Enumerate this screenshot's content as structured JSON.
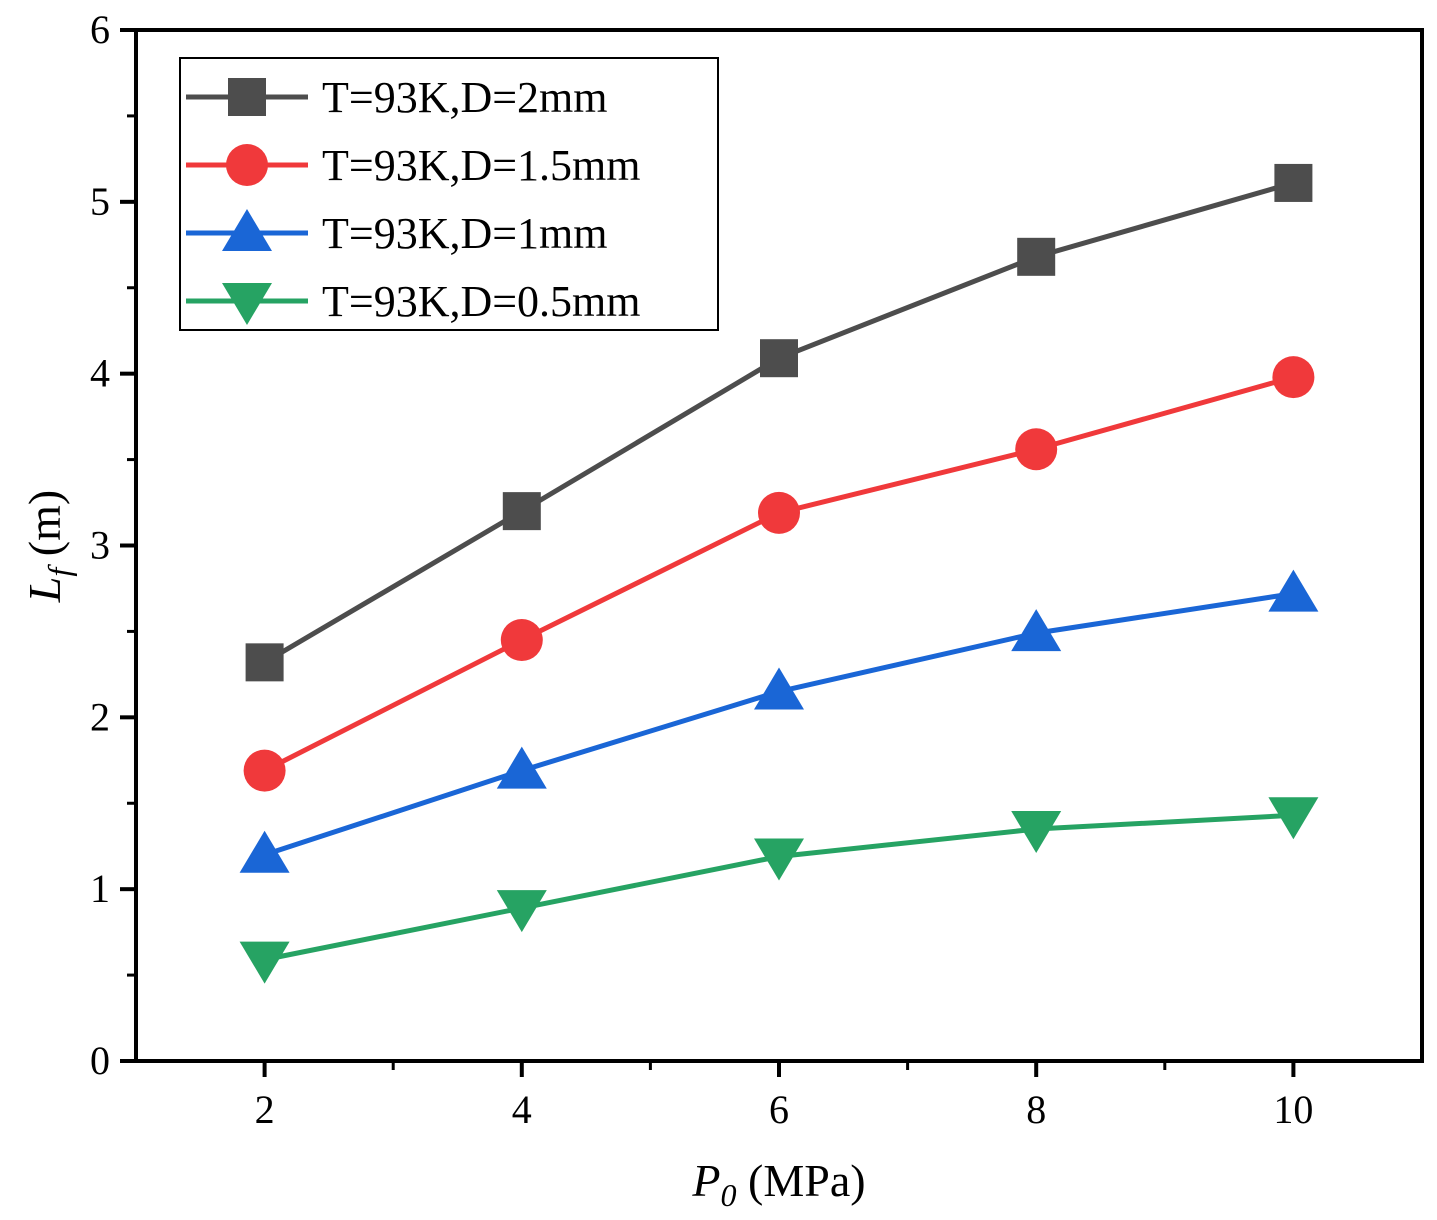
{
  "chart_data": {
    "type": "line",
    "xlabel": {
      "var": "P",
      "sub": "0",
      "unit": " (MPa)"
    },
    "ylabel": {
      "var": "L",
      "sub": "f",
      "unit": " (m)"
    },
    "xlim": [
      1,
      11
    ],
    "ylim": [
      0,
      6
    ],
    "xticks": [
      2,
      4,
      6,
      8,
      10
    ],
    "yticks": [
      0,
      1,
      2,
      3,
      4,
      5,
      6
    ],
    "grid": false,
    "legend_position": "top-left",
    "series": [
      {
        "name": "T=93K,D=2mm",
        "color": "#4d4d4d",
        "marker": "square",
        "x": [
          2,
          4,
          6,
          8,
          10
        ],
        "y": [
          2.32,
          3.2,
          4.09,
          4.68,
          5.11
        ]
      },
      {
        "name": "T=93K,D=1.5mm",
        "color": "#f0393b",
        "marker": "circle",
        "x": [
          2,
          4,
          6,
          8,
          10
        ],
        "y": [
          1.69,
          2.45,
          3.19,
          3.56,
          3.98
        ]
      },
      {
        "name": "T=93K,D=1mm",
        "color": "#1a66d6",
        "marker": "triangle-up",
        "x": [
          2,
          4,
          6,
          8,
          10
        ],
        "y": [
          1.2,
          1.69,
          2.15,
          2.49,
          2.72
        ]
      },
      {
        "name": "T=93K,D=0.5mm",
        "color": "#26a363",
        "marker": "triangle-down",
        "x": [
          2,
          4,
          6,
          8,
          10
        ],
        "y": [
          0.59,
          0.89,
          1.19,
          1.35,
          1.43
        ]
      }
    ]
  }
}
